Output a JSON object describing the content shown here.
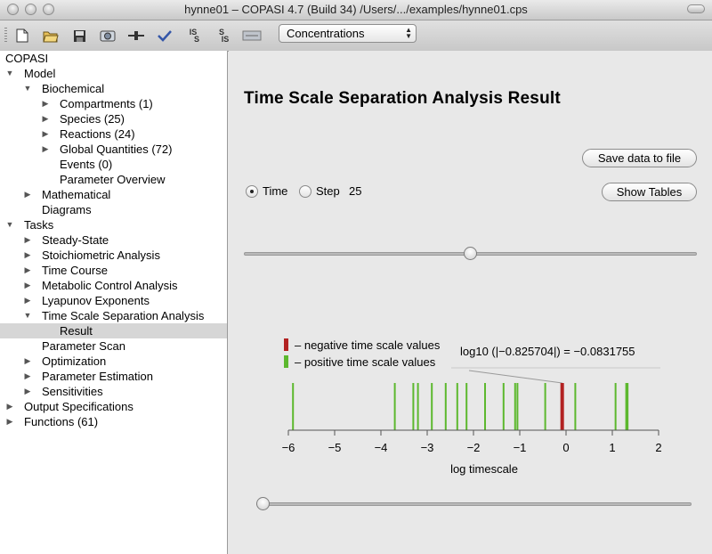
{
  "window": {
    "title": "hynne01 – COPASI 4.7 (Build 34) /Users/.../examples/hynne01.cps"
  },
  "toolbar": {
    "buttons": [
      {
        "name": "new-icon"
      },
      {
        "name": "open-icon"
      },
      {
        "name": "save-icon"
      },
      {
        "name": "capture-icon"
      },
      {
        "name": "slider-icon"
      },
      {
        "name": "check-icon"
      },
      {
        "name": "is-s-icon",
        "label_top": "IS",
        "label_bottom": "S"
      },
      {
        "name": "s-is-icon",
        "label_top": "S",
        "label_bottom": "IS"
      },
      {
        "name": "sbml-icon"
      }
    ],
    "mode_selected": "Concentrations"
  },
  "tree": {
    "root": "COPASI",
    "rows": [
      {
        "label": "Model",
        "level": 0,
        "arrow": "down"
      },
      {
        "label": "Biochemical",
        "level": 1,
        "arrow": "down"
      },
      {
        "label": "Compartments (1)",
        "level": 2,
        "arrow": "right"
      },
      {
        "label": "Species (25)",
        "level": 2,
        "arrow": "right"
      },
      {
        "label": "Reactions (24)",
        "level": 2,
        "arrow": "right"
      },
      {
        "label": "Global Quantities (72)",
        "level": 2,
        "arrow": "right"
      },
      {
        "label": "Events (0)",
        "level": 2,
        "arrow": ""
      },
      {
        "label": "Parameter Overview",
        "level": 2,
        "arrow": ""
      },
      {
        "label": "Mathematical",
        "level": 1,
        "arrow": "right"
      },
      {
        "label": "Diagrams",
        "level": 1,
        "arrow": ""
      },
      {
        "label": "Tasks",
        "level": 0,
        "arrow": "down"
      },
      {
        "label": "Steady-State",
        "level": 1,
        "arrow": "right"
      },
      {
        "label": "Stoichiometric Analysis",
        "level": 1,
        "arrow": "right"
      },
      {
        "label": "Time Course",
        "level": 1,
        "arrow": "right"
      },
      {
        "label": "Metabolic Control Analysis",
        "level": 1,
        "arrow": "right"
      },
      {
        "label": "Lyapunov Exponents",
        "level": 1,
        "arrow": "right"
      },
      {
        "label": "Time Scale Separation Analysis",
        "level": 1,
        "arrow": "down"
      },
      {
        "label": "Result",
        "level": 2,
        "arrow": "",
        "selected": true
      },
      {
        "label": "Parameter Scan",
        "level": 1,
        "arrow": ""
      },
      {
        "label": "Optimization",
        "level": 1,
        "arrow": "right"
      },
      {
        "label": "Parameter Estimation",
        "level": 1,
        "arrow": "right"
      },
      {
        "label": "Sensitivities",
        "level": 1,
        "arrow": "right"
      },
      {
        "label": "Output Specifications",
        "level": 0,
        "arrow": "right"
      },
      {
        "label": "Functions (61)",
        "level": 0,
        "arrow": "right"
      }
    ]
  },
  "result": {
    "heading": "Time Scale Separation Analysis Result",
    "save_button": "Save data to file",
    "show_tables_button": "Show Tables",
    "radio_time": "Time",
    "radio_step": "Step",
    "step_value": "25",
    "time_selected": true,
    "time_slider_fraction": 0.5,
    "bottom_slider_fraction": 0.0
  },
  "chart_data": {
    "type": "bar",
    "xlabel": "log timescale",
    "xlim": [
      -6,
      2
    ],
    "xticks": [
      -6,
      -5,
      -4,
      -3,
      -2,
      -1,
      0,
      1,
      2
    ],
    "xtick_labels": [
      "−6",
      "−5",
      "−4",
      "−3",
      "−2",
      "−1",
      "0",
      "1",
      "2"
    ],
    "legend": [
      {
        "label": "– negative time scale values",
        "color": "#b22222"
      },
      {
        "label": "– positive time scale values",
        "color": "#5cb82e"
      }
    ],
    "annotation": "log10 (|−0.825704|) = −0.0831755",
    "positive_values": [
      -5.9,
      -3.7,
      -3.3,
      -3.2,
      -2.9,
      -2.6,
      -2.35,
      -2.15,
      -1.75,
      -1.35,
      -1.1,
      -1.05,
      -0.45,
      0.2,
      1.07,
      1.3,
      1.33
    ],
    "negative_values": [
      -0.0831755
    ],
    "colors": {
      "positive": "#5cb82e",
      "negative": "#b22222"
    }
  }
}
